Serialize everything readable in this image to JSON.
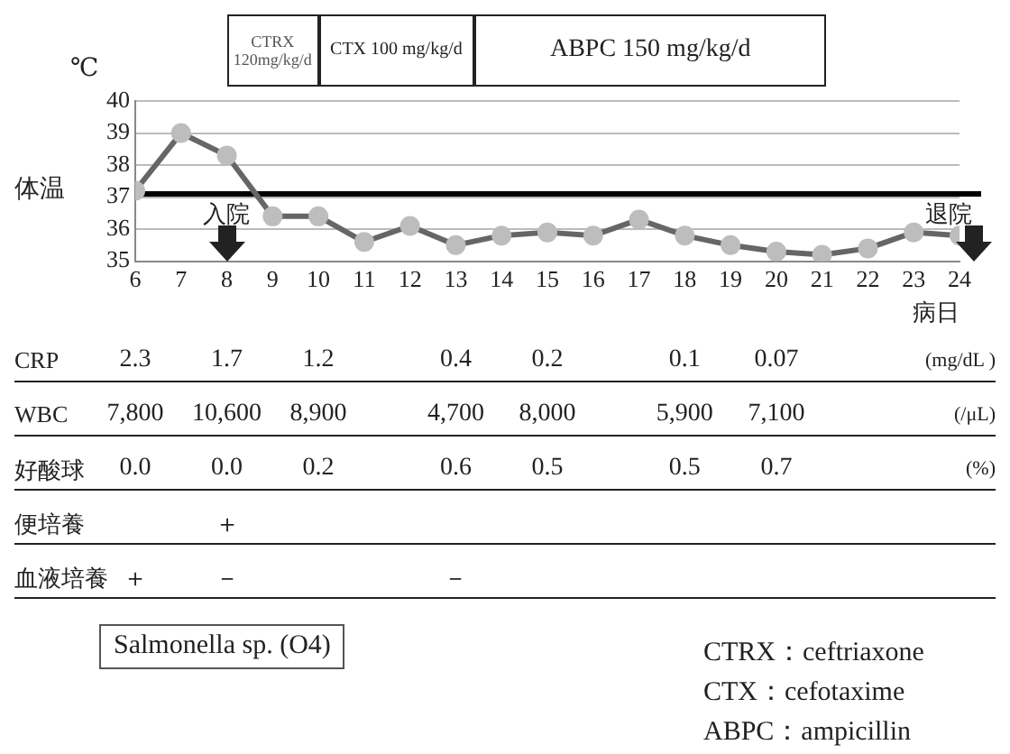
{
  "chart_data": [
    {
      "type": "line",
      "ylabel": "体温",
      "xlabel": "病日",
      "x": [
        6,
        7,
        8,
        9,
        10,
        11,
        12,
        13,
        14,
        15,
        16,
        17,
        18,
        19,
        20,
        21,
        22,
        23,
        24
      ],
      "values": [
        37.2,
        39.0,
        38.3,
        36.4,
        36.4,
        35.6,
        36.1,
        35.5,
        35.8,
        35.9,
        35.8,
        36.3,
        35.8,
        35.5,
        35.3,
        35.2,
        35.4,
        35.9,
        35.8
      ],
      "color": "#666666",
      "marker": "circle",
      "xlim": [
        6,
        24
      ],
      "xticks": [
        6,
        7,
        8,
        9,
        10,
        11,
        12,
        13,
        14,
        15,
        16,
        17,
        18,
        19,
        20,
        21,
        22,
        23,
        24
      ],
      "ylim": [
        35,
        40
      ],
      "yticks": [
        35,
        36,
        37,
        38,
        39,
        40
      ],
      "grid": "y",
      "ref_lines": [
        {
          "axis": "y",
          "value": 37.1,
          "color": "#000000"
        }
      ],
      "annotations": [
        "℃",
        "入院",
        "退院",
        "CTRX 120mg/kg/d",
        "CTX 100 mg/kg/d",
        "ABPC 150 mg/kg/d"
      ]
    },
    {
      "type": "other",
      "categories": [
        null,
        null,
        null,
        null,
        null,
        null,
        null,
        null,
        null,
        null,
        null,
        null,
        null,
        null,
        null,
        null,
        null,
        null,
        null
      ],
      "series": [
        {
          "name": "CRP",
          "values": [
            null,
            null,
            null,
            null,
            null,
            null,
            null,
            null,
            null,
            null,
            null,
            null,
            null,
            null,
            null,
            null,
            null,
            null,
            null
          ],
          "value_labels": [
            "2.3",
            null,
            "1.7",
            null,
            "1.2",
            null,
            null,
            "0.4",
            null,
            "0.2",
            null,
            null,
            "0.1",
            null,
            "0.07",
            null,
            null,
            null,
            null
          ]
        },
        {
          "name": "WBC",
          "values": [
            null,
            null,
            null,
            null,
            null,
            null,
            null,
            null,
            null,
            null,
            null,
            null,
            null,
            null,
            null,
            null,
            null,
            null,
            null
          ],
          "value_labels": [
            "7,800",
            null,
            "10,600",
            null,
            "8,900",
            null,
            null,
            "4,700",
            null,
            "8,000",
            null,
            null,
            "5,900",
            null,
            "7,100",
            null,
            null,
            null,
            null
          ]
        },
        {
          "name": "好酸球",
          "values": [
            null,
            null,
            null,
            null,
            null,
            null,
            null,
            null,
            null,
            null,
            null,
            null,
            null,
            null,
            null,
            null,
            null,
            null,
            null
          ],
          "value_labels": [
            "0.0",
            null,
            "0.0",
            null,
            "0.2",
            null,
            null,
            "0.6",
            null,
            "0.5",
            null,
            null,
            "0.5",
            null,
            "0.7",
            null,
            null,
            null,
            null
          ]
        },
        {
          "name": "便培養",
          "values": [
            null,
            null,
            null,
            null,
            null,
            null,
            null,
            null,
            null,
            null,
            null,
            null,
            null,
            null,
            null,
            null,
            null,
            null,
            null
          ],
          "value_labels": [
            null,
            null,
            "＋",
            null,
            null,
            null,
            null,
            null,
            null,
            null,
            null,
            null,
            null,
            null,
            null,
            null,
            null,
            null,
            null
          ]
        },
        {
          "name": "血液培養",
          "values": [
            null,
            null,
            null,
            null,
            null,
            null,
            null,
            null,
            null,
            null,
            null,
            null,
            null,
            null,
            null,
            null,
            null,
            null,
            null
          ],
          "value_labels": [
            "＋",
            null,
            "－",
            null,
            null,
            null,
            null,
            "－",
            null,
            null,
            null,
            null,
            null,
            null,
            null,
            null,
            null,
            null,
            null
          ]
        }
      ],
      "annotations": [
        "(mg/dL )",
        "(/μL)",
        "(%)",
        "Salmonella sp. (O4)",
        "CTRX：ceftriaxone",
        "CTX：cefotaxime",
        "ABPC：ampicillin"
      ]
    }
  ]
}
